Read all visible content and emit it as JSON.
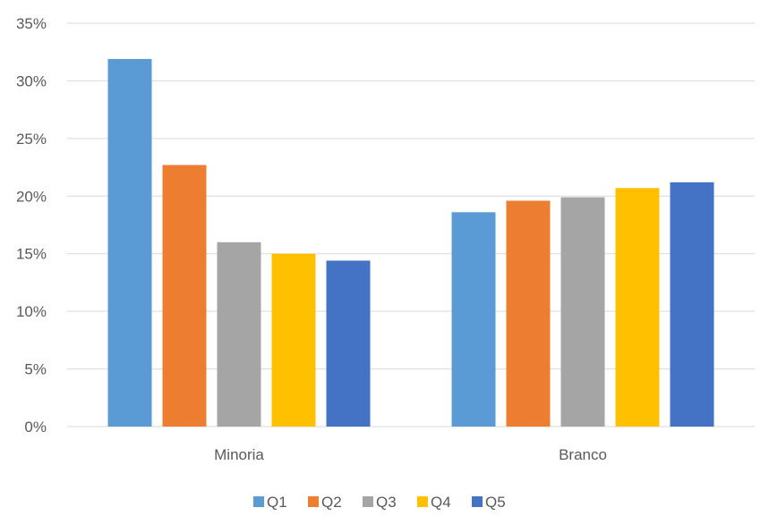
{
  "chart_data": {
    "type": "bar",
    "categories": [
      "Minoria",
      "Branco"
    ],
    "series": [
      {
        "name": "Q1",
        "color": "#5B9BD5",
        "values": [
          31.9,
          18.6
        ]
      },
      {
        "name": "Q2",
        "color": "#ED7D31",
        "values": [
          22.7,
          19.6
        ]
      },
      {
        "name": "Q3",
        "color": "#A5A5A5",
        "values": [
          16.0,
          19.9
        ]
      },
      {
        "name": "Q4",
        "color": "#FFC000",
        "values": [
          15.0,
          20.7
        ]
      },
      {
        "name": "Q5",
        "color": "#4472C4",
        "values": [
          14.4,
          21.2
        ]
      }
    ],
    "ylim": [
      0,
      35
    ],
    "yticks": [
      0,
      5,
      10,
      15,
      20,
      25,
      30,
      35
    ],
    "ytick_labels": [
      "0%",
      "5%",
      "10%",
      "15%",
      "20%",
      "25%",
      "30%",
      "35%"
    ],
    "grid": true,
    "gridline_color": "#D9D9D9",
    "legend_position": "bottom"
  }
}
